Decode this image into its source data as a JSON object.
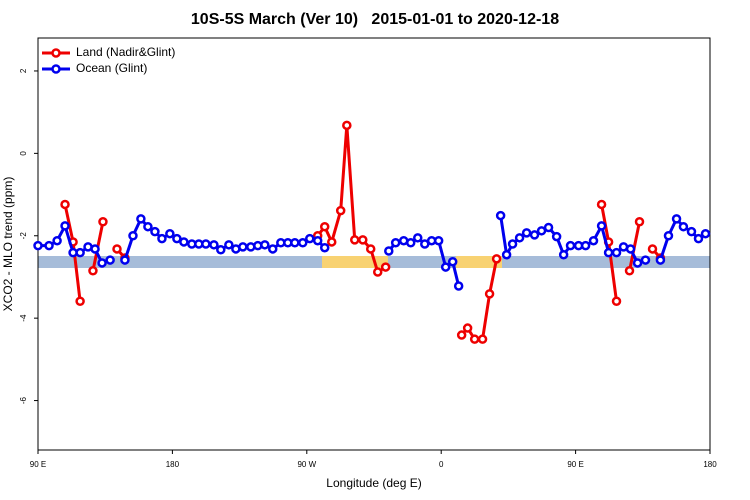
{
  "chart_data": {
    "type": "line",
    "title": "10S-5S March (Ver 10)   2015-01-01 to 2020-12-18",
    "x_label": "Longitude (deg E)",
    "y_label": "XCO2 - MLO trend (ppm)",
    "xlim": [
      90,
      540
    ],
    "ylim": [
      -7.2,
      2.8
    ],
    "xticks": [
      {
        "value": 90,
        "label": "90 E"
      },
      180,
      {
        "value": 270,
        "label": "90 W"
      },
      {
        "value": 360,
        "label": "0"
      },
      {
        "value": 450,
        "label": "90 E"
      },
      {
        "value": 540,
        "label": "180"
      }
    ],
    "yticks": [
      -6,
      -4,
      -2,
      0,
      2
    ],
    "legend": "top-left",
    "series": [
      {
        "name": "Land (Nadir&Glint)",
        "color": "#ee0000",
        "x": [
          108.1,
          113.5,
          118.2,
          null,
          126.8,
          133.5,
          null,
          142.9,
          148.2,
          null,
          277.3,
          282.0,
          286.7,
          292.7,
          296.8,
          302.1,
          307.5,
          312.8,
          317.5,
          322.8,
          null,
          373.7,
          377.7,
          382.4,
          387.7,
          392.4,
          397.1,
          null,
          467.4,
          472.1,
          477.4,
          null,
          486.1,
          492.8,
          null,
          501.5,
          506.8
        ],
        "values": [
          -1.24,
          -2.15,
          -3.59,
          null,
          -2.85,
          -1.66,
          null,
          -2.32,
          -2.54,
          null,
          -2.0,
          -1.78,
          -2.15,
          -1.39,
          0.68,
          -2.1,
          -2.1,
          -2.32,
          -2.88,
          -2.76,
          null,
          -4.41,
          -4.24,
          -4.51,
          -4.51,
          -3.41,
          -2.56,
          null,
          -1.24,
          -2.15,
          -3.59,
          null,
          -2.85,
          -1.66,
          null,
          -2.32,
          -2.54
        ]
      },
      {
        "name": "Ocean (Glint)",
        "color": "#0000ee",
        "x": [
          90.0,
          97.4,
          102.8,
          108.1,
          113.5,
          118.2,
          123.5,
          128.2,
          132.9,
          138.3,
          null,
          148.2,
          153.6,
          158.9,
          163.6,
          168.3,
          173.0,
          178.3,
          183.0,
          187.7,
          193.0,
          197.7,
          202.4,
          207.8,
          212.4,
          217.8,
          222.5,
          227.2,
          232.5,
          237.2,
          241.9,
          247.2,
          252.6,
          257.3,
          262.0,
          267.3,
          272.0,
          277.3,
          282.0,
          null,
          324.9,
          329.5,
          334.9,
          339.6,
          344.3,
          349.0,
          353.6,
          358.3,
          363.0,
          367.7,
          371.7,
          null,
          399.8,
          403.8,
          407.8,
          412.5,
          417.2,
          422.5,
          427.2,
          431.9,
          437.3,
          442.0,
          446.6,
          452.0,
          456.7,
          462.0,
          467.4,
          472.1,
          477.4,
          482.1,
          486.8,
          491.5,
          496.8,
          null,
          506.8,
          512.2,
          517.6,
          522.2,
          527.6,
          532.3,
          537.0
        ],
        "values": [
          -2.24,
          -2.24,
          -2.12,
          -1.76,
          -2.41,
          -2.41,
          -2.27,
          -2.32,
          -2.66,
          -2.59,
          null,
          -2.59,
          -2.0,
          -1.59,
          -1.78,
          -1.9,
          -2.07,
          -1.95,
          -2.07,
          -2.15,
          -2.2,
          -2.2,
          -2.2,
          -2.22,
          -2.34,
          -2.22,
          -2.32,
          -2.27,
          -2.27,
          -2.24,
          -2.22,
          -2.32,
          -2.17,
          -2.17,
          -2.17,
          -2.17,
          -2.07,
          -2.12,
          -2.29,
          null,
          -2.37,
          -2.17,
          -2.12,
          -2.17,
          -2.05,
          -2.2,
          -2.12,
          -2.12,
          -2.76,
          -2.63,
          -3.22,
          null,
          -1.51,
          -2.46,
          -2.2,
          -2.05,
          -1.93,
          -1.98,
          -1.88,
          -1.8,
          -2.02,
          -2.46,
          -2.24,
          -2.24,
          -2.24,
          -2.12,
          -1.76,
          -2.41,
          -2.41,
          -2.27,
          -2.32,
          -2.66,
          -2.59,
          null,
          -2.59,
          -2.0,
          -1.59,
          -1.78,
          -1.9,
          -2.07,
          -1.95
        ]
      }
    ]
  }
}
